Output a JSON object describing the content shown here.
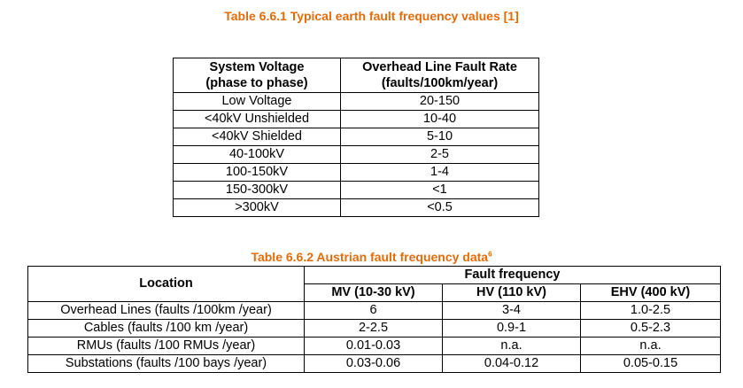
{
  "table1": {
    "caption": "Table 6.6.1 Typical earth fault frequency values [1]",
    "header_col1_line1": "System Voltage",
    "header_col1_line2": "(phase to phase)",
    "header_col2_line1": "Overhead Line Fault Rate",
    "header_col2_line2": "(faults/100km/year)",
    "rows": [
      {
        "voltage": "Low Voltage",
        "rate": "20-150"
      },
      {
        "voltage": "<40kV Unshielded",
        "rate": "10-40"
      },
      {
        "voltage": "<40kV Shielded",
        "rate": "5-10"
      },
      {
        "voltage": "40-100kV",
        "rate": "2-5"
      },
      {
        "voltage": "100-150kV",
        "rate": "1-4"
      },
      {
        "voltage": "150-300kV",
        "rate": "<1"
      },
      {
        "voltage": ">300kV",
        "rate": "<0.5"
      }
    ]
  },
  "table2": {
    "caption": "Table 6.6.2 Austrian fault frequency data",
    "caption_sup": "6",
    "header_location": "Location",
    "header_fault_frequency": "Fault frequency",
    "header_mv": "MV (10-30 kV)",
    "header_hv": "HV (110 kV)",
    "header_ehv": "EHV (400 kV)",
    "rows": [
      {
        "location": "Overhead Lines (faults /100km /year)",
        "mv": "6",
        "hv": "3-4",
        "ehv": "1.0-2.5"
      },
      {
        "location": "Cables (faults /100 km /year)",
        "mv": "2-2.5",
        "hv": "0.9-1",
        "ehv": "0.5-2.3"
      },
      {
        "location": "RMUs (faults /100 RMUs /year)",
        "mv": "0.01-0.03",
        "hv": "n.a.",
        "ehv": "n.a."
      },
      {
        "location": "Substations (faults /100 bays /year)",
        "mv": "0.03-0.06",
        "hv": "0.04-0.12",
        "ehv": "0.05-0.15"
      }
    ]
  }
}
